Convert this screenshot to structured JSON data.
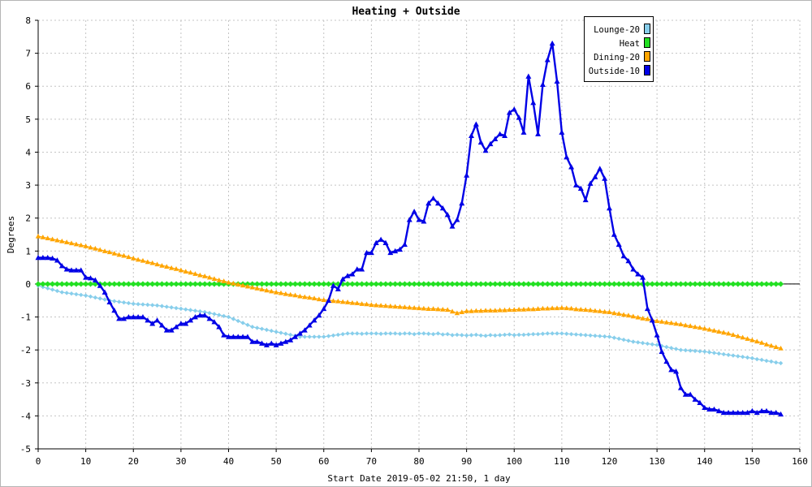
{
  "chart_data": {
    "type": "line",
    "title": "Heating + Outside",
    "xlabel": "Start Date 2019-05-02 21:50, 1 day",
    "ylabel": "Degrees",
    "xlim": [
      0,
      160
    ],
    "ylim": [
      -5,
      8
    ],
    "xticks": [
      0,
      10,
      20,
      30,
      40,
      50,
      60,
      70,
      80,
      90,
      100,
      110,
      120,
      130,
      140,
      150,
      160
    ],
    "yticks": [
      -5,
      -4,
      -3,
      -2,
      -1,
      0,
      1,
      2,
      3,
      4,
      5,
      6,
      7,
      8
    ],
    "grid": true,
    "legend_position": "top-right",
    "x": [
      0,
      1,
      2,
      3,
      4,
      5,
      6,
      7,
      8,
      9,
      10,
      11,
      12,
      13,
      14,
      15,
      16,
      17,
      18,
      19,
      20,
      21,
      22,
      23,
      24,
      25,
      26,
      27,
      28,
      29,
      30,
      31,
      32,
      33,
      34,
      35,
      36,
      37,
      38,
      39,
      40,
      41,
      42,
      43,
      44,
      45,
      46,
      47,
      48,
      49,
      50,
      51,
      52,
      53,
      54,
      55,
      56,
      57,
      58,
      59,
      60,
      61,
      62,
      63,
      64,
      65,
      66,
      67,
      68,
      69,
      70,
      71,
      72,
      73,
      74,
      75,
      76,
      77,
      78,
      79,
      80,
      81,
      82,
      83,
      84,
      85,
      86,
      87,
      88,
      89,
      90,
      91,
      92,
      93,
      94,
      95,
      96,
      97,
      98,
      99,
      100,
      101,
      102,
      103,
      104,
      105,
      106,
      107,
      108,
      109,
      110,
      111,
      112,
      113,
      114,
      115,
      116,
      117,
      118,
      119,
      120,
      121,
      122,
      123,
      124,
      125,
      126,
      127,
      128,
      129,
      130,
      131,
      132,
      133,
      134,
      135,
      136,
      137,
      138,
      139,
      140,
      141,
      142,
      143,
      144,
      145,
      146,
      147,
      148,
      149,
      150,
      151,
      152,
      153,
      154,
      155,
      156
    ],
    "series": [
      {
        "name": "Lounge-20",
        "color": "#87ceeb",
        "values": [
          -0.05,
          -0.09,
          -0.13,
          -0.17,
          -0.21,
          -0.25,
          -0.27,
          -0.29,
          -0.31,
          -0.33,
          -0.35,
          -0.38,
          -0.41,
          -0.44,
          -0.47,
          -0.5,
          -0.52,
          -0.54,
          -0.56,
          -0.58,
          -0.6,
          -0.61,
          -0.62,
          -0.63,
          -0.64,
          -0.65,
          -0.67,
          -0.69,
          -0.71,
          -0.73,
          -0.75,
          -0.77,
          -0.79,
          -0.81,
          -0.83,
          -0.85,
          -0.88,
          -0.91,
          -0.94,
          -0.97,
          -1.0,
          -1.06,
          -1.12,
          -1.18,
          -1.24,
          -1.3,
          -1.33,
          -1.36,
          -1.39,
          -1.42,
          -1.45,
          -1.48,
          -1.51,
          -1.54,
          -1.57,
          -1.6,
          -1.6,
          -1.6,
          -1.6,
          -1.6,
          -1.6,
          -1.58,
          -1.56,
          -1.54,
          -1.52,
          -1.5,
          -1.5,
          -1.5,
          -1.51,
          -1.5,
          -1.5,
          -1.5,
          -1.51,
          -1.5,
          -1.5,
          -1.5,
          -1.51,
          -1.5,
          -1.5,
          -1.52,
          -1.5,
          -1.5,
          -1.51,
          -1.52,
          -1.5,
          -1.53,
          -1.52,
          -1.55,
          -1.54,
          -1.55,
          -1.56,
          -1.55,
          -1.54,
          -1.56,
          -1.57,
          -1.55,
          -1.56,
          -1.55,
          -1.54,
          -1.53,
          -1.55,
          -1.54,
          -1.54,
          -1.53,
          -1.52,
          -1.52,
          -1.51,
          -1.5,
          -1.5,
          -1.5,
          -1.5,
          -1.51,
          -1.52,
          -1.53,
          -1.54,
          -1.55,
          -1.56,
          -1.57,
          -1.58,
          -1.59,
          -1.6,
          -1.63,
          -1.66,
          -1.69,
          -1.72,
          -1.75,
          -1.77,
          -1.79,
          -1.81,
          -1.83,
          -1.85,
          -1.88,
          -1.91,
          -1.94,
          -1.97,
          -2.0,
          -2.01,
          -2.02,
          -2.03,
          -2.04,
          -2.05,
          -2.07,
          -2.09,
          -2.11,
          -2.13,
          -2.15,
          -2.17,
          -2.19,
          -2.21,
          -2.23,
          -2.25,
          -2.28,
          -2.3,
          -2.33,
          -2.35,
          -2.38,
          -2.4
        ]
      },
      {
        "name": "Heat",
        "color": "#22e022",
        "values": [
          0,
          0,
          0,
          0,
          0,
          0,
          0,
          0,
          0,
          0,
          0,
          0,
          0,
          0,
          0,
          0,
          0,
          0,
          0,
          0,
          0,
          0,
          0,
          0,
          0,
          0,
          0,
          0,
          0,
          0,
          0,
          0,
          0,
          0,
          0,
          0,
          0,
          0,
          0,
          0,
          0,
          0,
          0,
          0,
          0,
          0,
          0,
          0,
          0,
          0,
          0,
          0,
          0,
          0,
          0,
          0,
          0,
          0,
          0,
          0,
          0,
          0,
          0,
          0,
          0,
          0,
          0,
          0,
          0,
          0,
          0,
          0,
          0,
          0,
          0,
          0,
          0,
          0,
          0,
          0,
          0,
          0,
          0,
          0,
          0,
          0,
          0,
          0,
          0,
          0,
          0,
          0,
          0,
          0,
          0,
          0,
          0,
          0,
          0,
          0,
          0,
          0,
          0,
          0,
          0,
          0,
          0,
          0,
          0,
          0,
          0,
          0,
          0,
          0,
          0,
          0,
          0,
          0,
          0,
          0,
          0,
          0,
          0,
          0,
          0,
          0,
          0,
          0,
          0,
          0,
          0,
          0,
          0,
          0,
          0,
          0,
          0,
          0,
          0,
          0,
          0,
          0,
          0,
          0,
          0,
          0,
          0,
          0,
          0,
          0,
          0,
          0,
          0,
          0,
          0,
          0,
          0
        ]
      },
      {
        "name": "Dining-20",
        "color": "#ffa500",
        "values": [
          1.45,
          1.42,
          1.39,
          1.36,
          1.33,
          1.3,
          1.27,
          1.24,
          1.21,
          1.18,
          1.15,
          1.11,
          1.08,
          1.04,
          1.0,
          0.97,
          0.93,
          0.89,
          0.86,
          0.82,
          0.78,
          0.74,
          0.71,
          0.67,
          0.64,
          0.6,
          0.56,
          0.53,
          0.49,
          0.46,
          0.42,
          0.38,
          0.35,
          0.31,
          0.27,
          0.24,
          0.2,
          0.16,
          0.12,
          0.09,
          0.05,
          0.02,
          -0.01,
          -0.04,
          -0.07,
          -0.1,
          -0.13,
          -0.16,
          -0.19,
          -0.22,
          -0.25,
          -0.27,
          -0.3,
          -0.32,
          -0.34,
          -0.37,
          -0.39,
          -0.41,
          -0.43,
          -0.46,
          -0.48,
          -0.49,
          -0.51,
          -0.52,
          -0.54,
          -0.55,
          -0.57,
          -0.58,
          -0.6,
          -0.61,
          -0.63,
          -0.64,
          -0.65,
          -0.66,
          -0.67,
          -0.68,
          -0.69,
          -0.7,
          -0.71,
          -0.72,
          -0.73,
          -0.74,
          -0.75,
          -0.75,
          -0.76,
          -0.77,
          -0.78,
          -0.83,
          -0.88,
          -0.85,
          -0.82,
          -0.82,
          -0.81,
          -0.81,
          -0.8,
          -0.8,
          -0.8,
          -0.79,
          -0.79,
          -0.78,
          -0.78,
          -0.77,
          -0.77,
          -0.76,
          -0.76,
          -0.75,
          -0.74,
          -0.74,
          -0.73,
          -0.73,
          -0.72,
          -0.73,
          -0.74,
          -0.76,
          -0.77,
          -0.78,
          -0.79,
          -0.81,
          -0.82,
          -0.84,
          -0.85,
          -0.88,
          -0.9,
          -0.93,
          -0.95,
          -0.98,
          -1.01,
          -1.04,
          -1.06,
          -1.09,
          -1.12,
          -1.14,
          -1.16,
          -1.18,
          -1.2,
          -1.22,
          -1.25,
          -1.27,
          -1.3,
          -1.32,
          -1.35,
          -1.38,
          -1.41,
          -1.44,
          -1.47,
          -1.5,
          -1.54,
          -1.58,
          -1.62,
          -1.66,
          -1.7,
          -1.74,
          -1.78,
          -1.83,
          -1.87,
          -1.91,
          -1.95
        ]
      },
      {
        "name": "Outside-10",
        "color": "#0000e6",
        "values": [
          0.8,
          0.8,
          0.8,
          0.78,
          0.72,
          0.55,
          0.45,
          0.42,
          0.42,
          0.42,
          0.2,
          0.18,
          0.12,
          -0.05,
          -0.25,
          -0.55,
          -0.8,
          -1.05,
          -1.05,
          -1.0,
          -1.0,
          -1.0,
          -1.0,
          -1.1,
          -1.2,
          -1.1,
          -1.25,
          -1.4,
          -1.4,
          -1.3,
          -1.2,
          -1.2,
          -1.1,
          -1.0,
          -0.95,
          -0.95,
          -1.05,
          -1.15,
          -1.3,
          -1.55,
          -1.6,
          -1.6,
          -1.6,
          -1.6,
          -1.6,
          -1.75,
          -1.75,
          -1.8,
          -1.85,
          -1.8,
          -1.85,
          -1.8,
          -1.75,
          -1.7,
          -1.6,
          -1.5,
          -1.4,
          -1.25,
          -1.1,
          -0.95,
          -0.75,
          -0.5,
          -0.05,
          -0.15,
          0.15,
          0.25,
          0.3,
          0.45,
          0.45,
          0.95,
          0.95,
          1.25,
          1.35,
          1.25,
          0.95,
          1.0,
          1.05,
          1.2,
          1.95,
          2.2,
          1.95,
          1.9,
          2.45,
          2.6,
          2.45,
          2.3,
          2.1,
          1.75,
          1.95,
          2.45,
          3.3,
          4.5,
          4.85,
          4.3,
          4.05,
          4.25,
          4.4,
          4.55,
          4.5,
          5.2,
          5.3,
          5.05,
          4.6,
          6.3,
          5.5,
          4.55,
          6.05,
          6.8,
          7.3,
          6.15,
          4.6,
          3.85,
          3.55,
          3.0,
          2.9,
          2.55,
          3.05,
          3.25,
          3.5,
          3.2,
          2.3,
          1.5,
          1.2,
          0.85,
          0.7,
          0.45,
          0.3,
          0.2,
          -0.75,
          -1.1,
          -1.55,
          -2.05,
          -2.35,
          -2.6,
          -2.65,
          -3.15,
          -3.35,
          -3.35,
          -3.5,
          -3.6,
          -3.75,
          -3.8,
          -3.8,
          -3.85,
          -3.9,
          -3.9,
          -3.9,
          -3.9,
          -3.9,
          -3.9,
          -3.85,
          -3.9,
          -3.85,
          -3.85,
          -3.9,
          -3.9,
          -3.95
        ]
      }
    ]
  }
}
